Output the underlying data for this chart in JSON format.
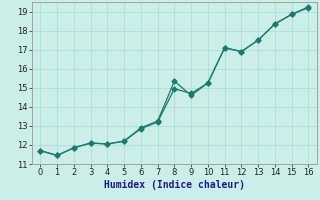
{
  "title": "",
  "xlabel": "Humidex (Indice chaleur)",
  "background_color": "#cceee8",
  "line_color": "#1a7a6e",
  "xlim": [
    -0.5,
    16.5
  ],
  "ylim": [
    11,
    19.5
  ],
  "xticks": [
    0,
    1,
    2,
    3,
    4,
    5,
    6,
    7,
    8,
    9,
    10,
    11,
    12,
    13,
    14,
    15,
    16
  ],
  "yticks": [
    11,
    12,
    13,
    14,
    15,
    16,
    17,
    18,
    19
  ],
  "line1_x": [
    0,
    1,
    2,
    3,
    4,
    5,
    6,
    7,
    8,
    9,
    10,
    11,
    12,
    13,
    14,
    15,
    16
  ],
  "line1_y": [
    11.7,
    11.45,
    11.85,
    12.1,
    12.05,
    12.2,
    12.9,
    13.25,
    15.35,
    14.6,
    15.25,
    17.1,
    16.9,
    17.5,
    18.35,
    18.85,
    19.2
  ],
  "line2_x": [
    0,
    1,
    2,
    3,
    4,
    5,
    6,
    7,
    8,
    9,
    10,
    11,
    12,
    13,
    14,
    15,
    16
  ],
  "line2_y": [
    11.7,
    11.45,
    11.85,
    12.1,
    12.05,
    12.2,
    12.85,
    13.2,
    14.95,
    14.7,
    15.25,
    17.1,
    16.9,
    17.5,
    18.35,
    18.85,
    19.25
  ],
  "grid_color": "#aadddd",
  "marker": "D",
  "markersize": 2.5,
  "tick_labelsize": 6,
  "xlabel_fontsize": 7
}
